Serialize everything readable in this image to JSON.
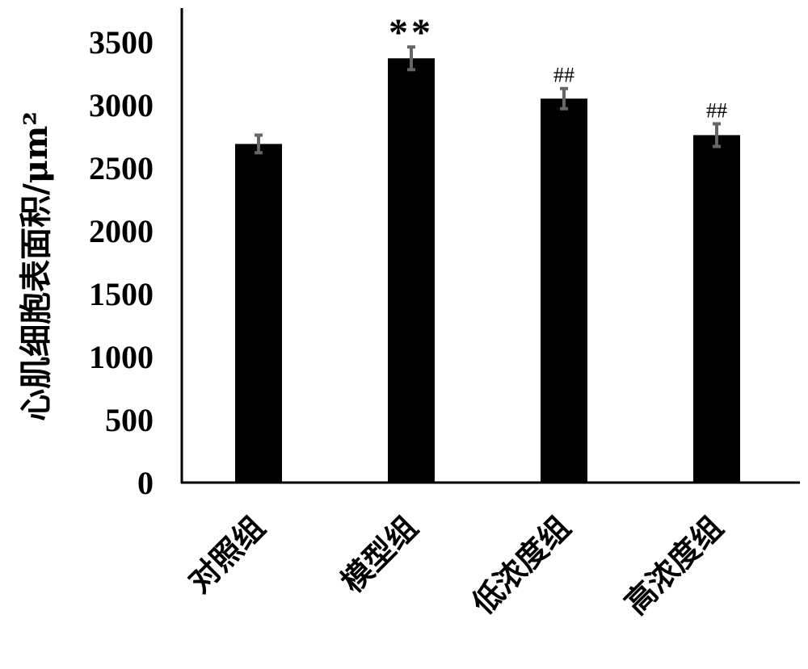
{
  "chart_data": {
    "type": "bar",
    "title": "",
    "xlabel": "",
    "ylabel": "心肌细胞表面积/μm²",
    "ylim": [
      0,
      3500
    ],
    "yticks": [
      "0",
      "500",
      "1000",
      "1500",
      "2000",
      "2500",
      "3000",
      "3500"
    ],
    "categories": [
      "对照组",
      "模型组",
      "低浓度组",
      "高浓度组"
    ],
    "values": [
      2690,
      3370,
      3050,
      2760
    ],
    "errors": [
      70,
      90,
      80,
      90
    ],
    "annotations": [
      "",
      "**",
      "##",
      "##"
    ],
    "grid": false,
    "legend": "none",
    "colors": {
      "bar": "#000000",
      "error_bar": "#666666",
      "axis": "#000000"
    }
  }
}
